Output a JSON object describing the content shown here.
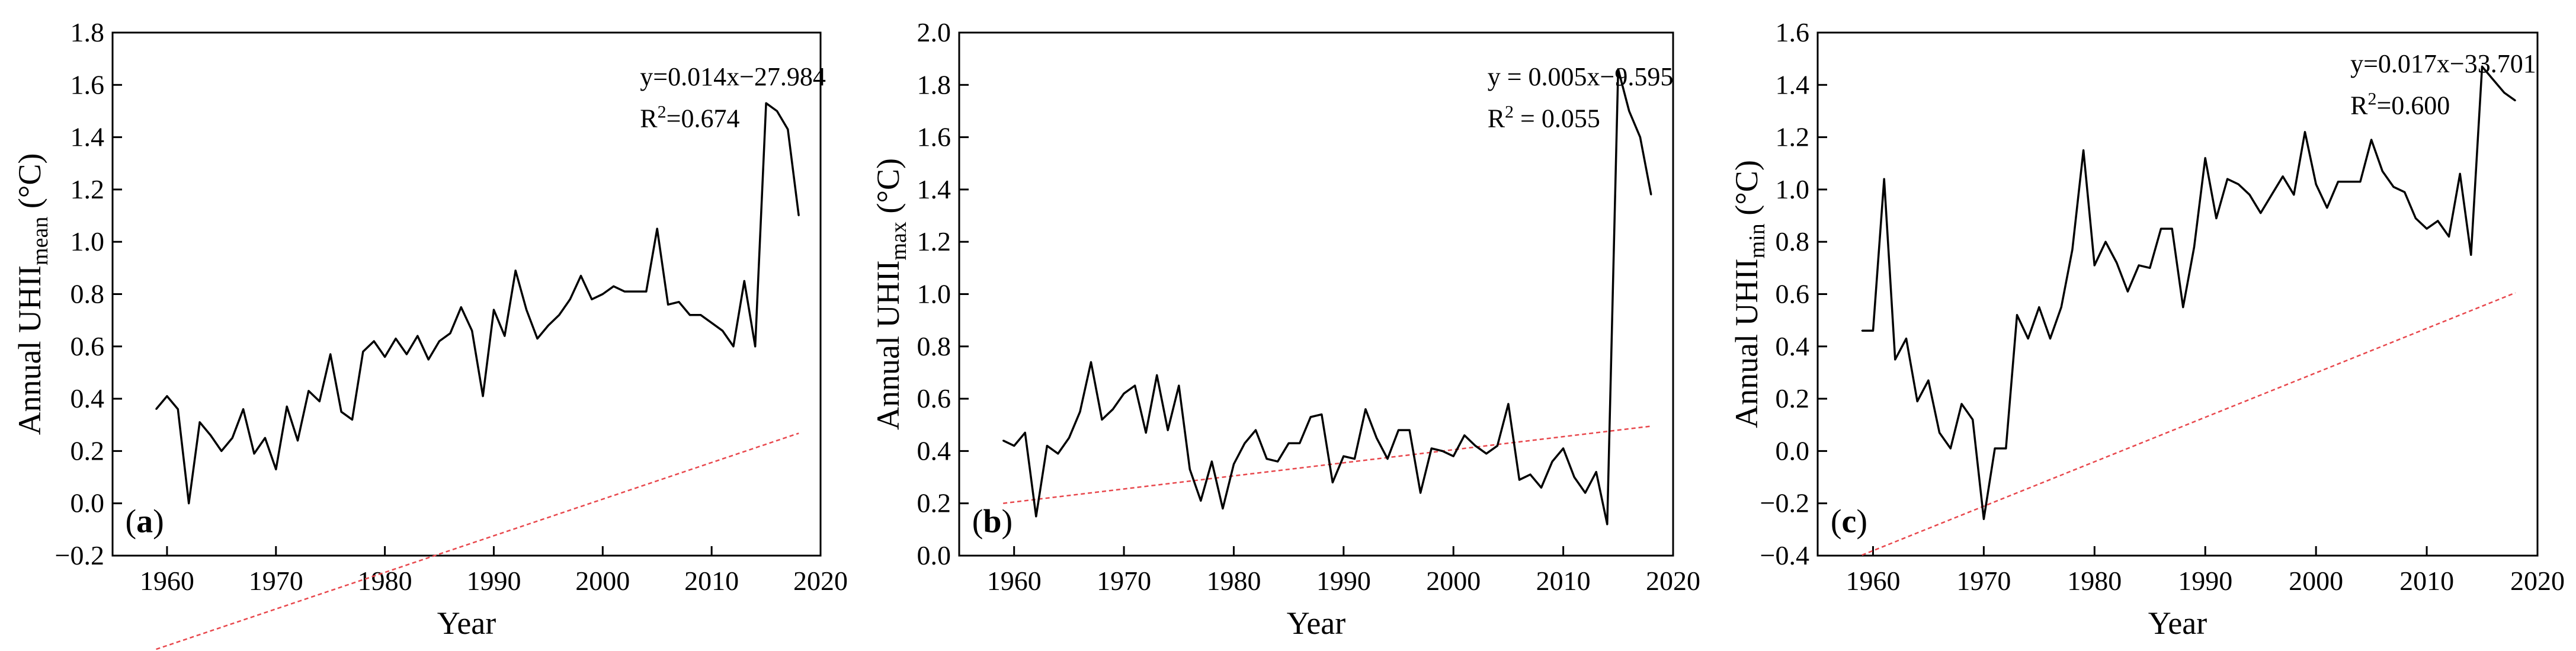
{
  "figure": {
    "subscript_style": "subscript"
  },
  "chart_data": [
    {
      "type": "line",
      "panel_label": "(a)",
      "xlabel": "Year",
      "ylabel_prefix": "Annual UHII",
      "ylabel_sub": "mean",
      "ylabel_suffix": " (°C)",
      "xlim": [
        1955,
        2020
      ],
      "ylim": [
        -0.2,
        1.8
      ],
      "xticks": [
        1960,
        1970,
        1980,
        1990,
        2000,
        2010,
        2020
      ],
      "yticks": [
        -0.2,
        0.0,
        0.2,
        0.4,
        0.6,
        0.8,
        1.0,
        1.2,
        1.4,
        1.6,
        1.8
      ],
      "ytick_labels": [
        "−0.2",
        "0.0",
        "0.2",
        "0.4",
        "0.6",
        "0.8",
        "1.0",
        "1.2",
        "1.4",
        "1.6",
        "1.8"
      ],
      "grid": false,
      "equation": "y=0.014x−27.984",
      "r2_prefix": "R",
      "r2_sup": "2",
      "r2_value": "=0.674",
      "trend": {
        "slope": 0.014,
        "intercept": -27.984,
        "x_start": 1959,
        "x_end": 2018,
        "color": "#e8474c"
      },
      "series": [
        {
          "name": "Annual UHII mean",
          "color": "#000000",
          "x": [
            1959,
            1960,
            1961,
            1962,
            1963,
            1964,
            1965,
            1966,
            1967,
            1968,
            1969,
            1970,
            1971,
            1972,
            1973,
            1974,
            1975,
            1976,
            1977,
            1978,
            1979,
            1980,
            1981,
            1982,
            1983,
            1984,
            1985,
            1986,
            1987,
            1988,
            1989,
            1990,
            1991,
            1992,
            1993,
            1994,
            1995,
            1996,
            1997,
            1998,
            1999,
            2000,
            2001,
            2002,
            2003,
            2004,
            2005,
            2006,
            2007,
            2008,
            2009,
            2010,
            2011,
            2012,
            2013,
            2014,
            2015,
            2016,
            2017,
            2018
          ],
          "values": [
            0.36,
            0.41,
            0.36,
            0.0,
            0.31,
            0.26,
            0.2,
            0.25,
            0.36,
            0.19,
            0.25,
            0.13,
            0.37,
            0.24,
            0.43,
            0.39,
            0.57,
            0.35,
            0.32,
            0.58,
            0.62,
            0.56,
            0.63,
            0.57,
            0.64,
            0.55,
            0.62,
            0.65,
            0.75,
            0.66,
            0.41,
            0.74,
            0.64,
            0.89,
            0.74,
            0.63,
            0.68,
            0.72,
            0.78,
            0.87,
            0.78,
            0.8,
            0.83,
            0.81,
            0.81,
            0.81,
            1.05,
            0.76,
            0.77,
            0.72,
            0.72,
            0.69,
            0.66,
            0.6,
            0.85,
            0.6,
            1.53,
            1.5,
            1.43,
            1.1
          ]
        }
      ]
    },
    {
      "type": "line",
      "panel_label": "(b)",
      "xlabel": "Year",
      "ylabel_prefix": "Annual UHII",
      "ylabel_sub": "max",
      "ylabel_suffix": " (°C)",
      "xlim": [
        1955,
        2020
      ],
      "ylim": [
        0.0,
        2.0
      ],
      "xticks": [
        1960,
        1970,
        1980,
        1990,
        2000,
        2010,
        2020
      ],
      "yticks": [
        0.0,
        0.2,
        0.4,
        0.6,
        0.8,
        1.0,
        1.2,
        1.4,
        1.6,
        1.8,
        2.0
      ],
      "ytick_labels": [
        "0.0",
        "0.2",
        "0.4",
        "0.6",
        "0.8",
        "1.0",
        "1.2",
        "1.4",
        "1.6",
        "1.8",
        "2.0"
      ],
      "grid": false,
      "equation": "y = 0.005x−9.595",
      "r2_prefix": "R",
      "r2_sup": "2",
      "r2_value": " = 0.055",
      "trend": {
        "slope": 0.005,
        "intercept": -9.595,
        "x_start": 1959,
        "x_end": 2018,
        "color": "#e8474c"
      },
      "series": [
        {
          "name": "Annual UHII max",
          "color": "#000000",
          "x": [
            1959,
            1960,
            1961,
            1962,
            1963,
            1964,
            1965,
            1966,
            1967,
            1968,
            1969,
            1970,
            1971,
            1972,
            1973,
            1974,
            1975,
            1976,
            1977,
            1978,
            1979,
            1980,
            1981,
            1982,
            1983,
            1984,
            1985,
            1986,
            1987,
            1988,
            1989,
            1990,
            1991,
            1992,
            1993,
            1994,
            1995,
            1996,
            1997,
            1998,
            1999,
            2000,
            2001,
            2002,
            2003,
            2004,
            2005,
            2006,
            2007,
            2008,
            2009,
            2010,
            2011,
            2012,
            2013,
            2014,
            2015,
            2016,
            2017,
            2018
          ],
          "values": [
            0.44,
            0.42,
            0.47,
            0.15,
            0.42,
            0.39,
            0.45,
            0.55,
            0.74,
            0.52,
            0.56,
            0.62,
            0.65,
            0.47,
            0.69,
            0.48,
            0.65,
            0.33,
            0.21,
            0.36,
            0.18,
            0.35,
            0.43,
            0.48,
            0.37,
            0.36,
            0.43,
            0.43,
            0.53,
            0.54,
            0.28,
            0.38,
            0.37,
            0.56,
            0.45,
            0.37,
            0.48,
            0.48,
            0.24,
            0.41,
            0.4,
            0.38,
            0.46,
            0.42,
            0.39,
            0.42,
            0.58,
            0.29,
            0.31,
            0.26,
            0.36,
            0.41,
            0.3,
            0.24,
            0.32,
            0.12,
            1.86,
            1.7,
            1.6,
            1.38
          ]
        }
      ]
    },
    {
      "type": "line",
      "panel_label": "(c)",
      "xlabel": "Year",
      "ylabel_prefix": "Annual UHII",
      "ylabel_sub": "min",
      "ylabel_suffix": " (°C)",
      "xlim": [
        1955,
        2020
      ],
      "ylim": [
        -0.4,
        1.6
      ],
      "xticks": [
        1960,
        1970,
        1980,
        1990,
        2000,
        2010,
        2020
      ],
      "yticks": [
        -0.4,
        -0.2,
        0.0,
        0.2,
        0.4,
        0.6,
        0.8,
        1.0,
        1.2,
        1.4,
        1.6
      ],
      "ytick_labels": [
        "−0.4",
        "−0.2",
        "0.0",
        "0.2",
        "0.4",
        "0.6",
        "0.8",
        "1.0",
        "1.2",
        "1.4",
        "1.6"
      ],
      "grid": false,
      "equation": "y=0.017x−33.701",
      "r2_prefix": "R",
      "r2_sup": "2",
      "r2_value": "=0.600",
      "trend": {
        "slope": 0.017,
        "intercept": -33.701,
        "x_start": 1959,
        "x_end": 2018,
        "color": "#e8474c"
      },
      "series": [
        {
          "name": "Annual UHII min",
          "color": "#000000",
          "x": [
            1959,
            1960,
            1961,
            1962,
            1963,
            1964,
            1965,
            1966,
            1967,
            1968,
            1969,
            1970,
            1971,
            1972,
            1973,
            1974,
            1975,
            1976,
            1977,
            1978,
            1979,
            1980,
            1981,
            1982,
            1983,
            1984,
            1985,
            1986,
            1987,
            1988,
            1989,
            1990,
            1991,
            1992,
            1993,
            1994,
            1995,
            1996,
            1997,
            1998,
            1999,
            2000,
            2001,
            2002,
            2003,
            2004,
            2005,
            2006,
            2007,
            2008,
            2009,
            2010,
            2011,
            2012,
            2013,
            2014,
            2015,
            2016,
            2017,
            2018
          ],
          "values": [
            0.46,
            0.46,
            1.04,
            0.35,
            0.43,
            0.19,
            0.27,
            0.07,
            0.01,
            0.18,
            0.12,
            -0.26,
            0.01,
            0.01,
            0.52,
            0.43,
            0.55,
            0.43,
            0.55,
            0.77,
            1.15,
            0.71,
            0.8,
            0.72,
            0.61,
            0.71,
            0.7,
            0.85,
            0.85,
            0.55,
            0.78,
            1.12,
            0.89,
            1.04,
            1.02,
            0.98,
            0.91,
            0.98,
            1.05,
            0.98,
            1.22,
            1.02,
            0.93,
            1.03,
            1.03,
            1.03,
            1.19,
            1.07,
            1.01,
            0.99,
            0.89,
            0.85,
            0.88,
            0.82,
            1.06,
            0.75,
            1.47,
            1.42,
            1.37,
            1.34
          ]
        }
      ]
    }
  ]
}
